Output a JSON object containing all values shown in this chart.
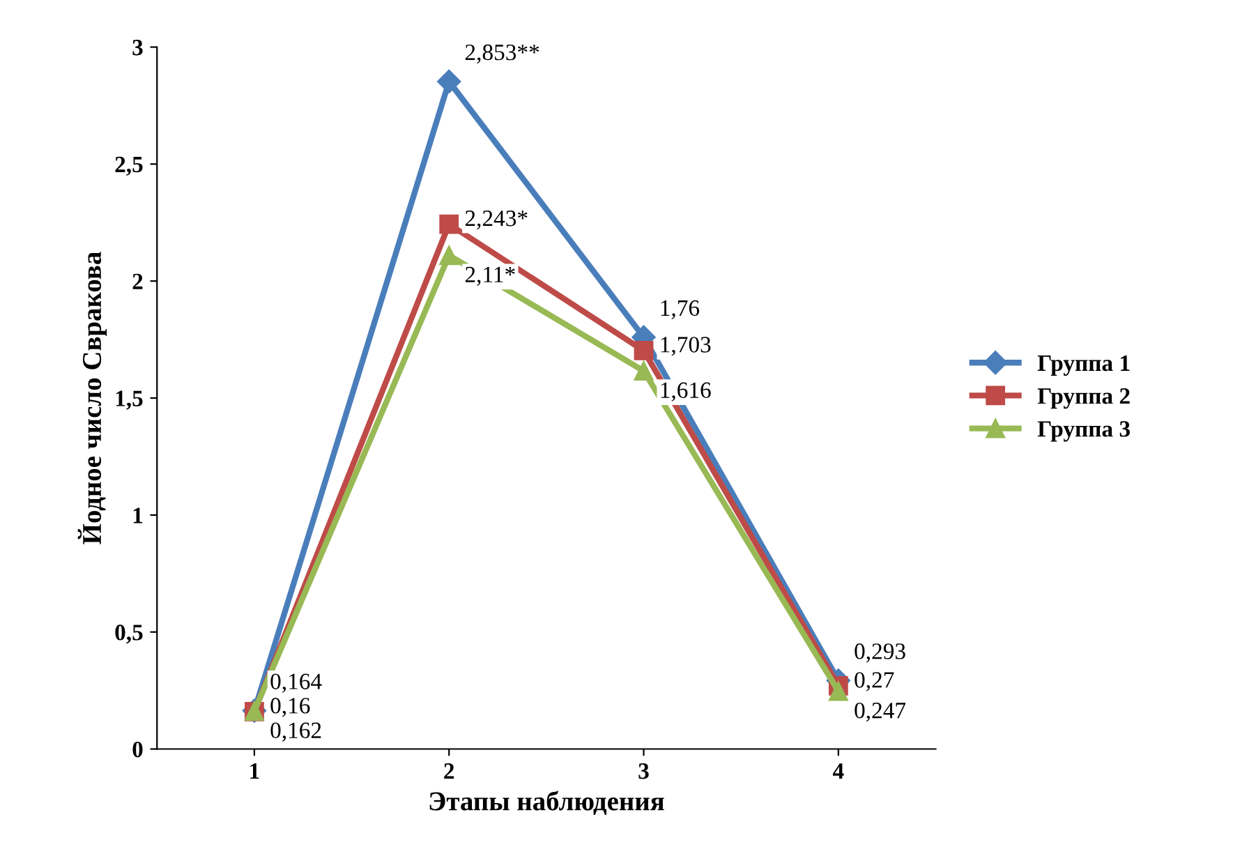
{
  "chart_data": {
    "type": "line",
    "xlabel": "Этапы наблюдения",
    "ylabel": "Йодное число Свракова",
    "categories": [
      "1",
      "2",
      "3",
      "4"
    ],
    "series": [
      {
        "name": "Группа 1",
        "color": "#4a7ebb",
        "marker": "diamond",
        "values": [
          0.164,
          2.853,
          1.76,
          0.293
        ],
        "value_labels": [
          "0,164",
          "2,853**",
          "1,76",
          "0,293"
        ]
      },
      {
        "name": "Группа 2",
        "color": "#be4b48",
        "marker": "square",
        "values": [
          0.16,
          2.243,
          1.703,
          0.27
        ],
        "value_labels": [
          "0,16",
          "2,243*",
          "1,703",
          "0,27"
        ]
      },
      {
        "name": "Группа 3",
        "color": "#98b954",
        "marker": "triangle",
        "values": [
          0.162,
          2.11,
          1.616,
          0.247
        ],
        "value_labels": [
          "0,162",
          "2,11*",
          "1,616",
          "0,247"
        ]
      }
    ],
    "ylim": [
      0,
      3
    ],
    "yticks": [
      0,
      {
        "value": 0.5,
        "label": "0,5"
      },
      1,
      {
        "value": 1.5,
        "label": "1,5"
      },
      2,
      {
        "value": 2.5,
        "label": "2,5"
      },
      3
    ],
    "grid": false,
    "legend": "right",
    "line_style": "solid"
  }
}
